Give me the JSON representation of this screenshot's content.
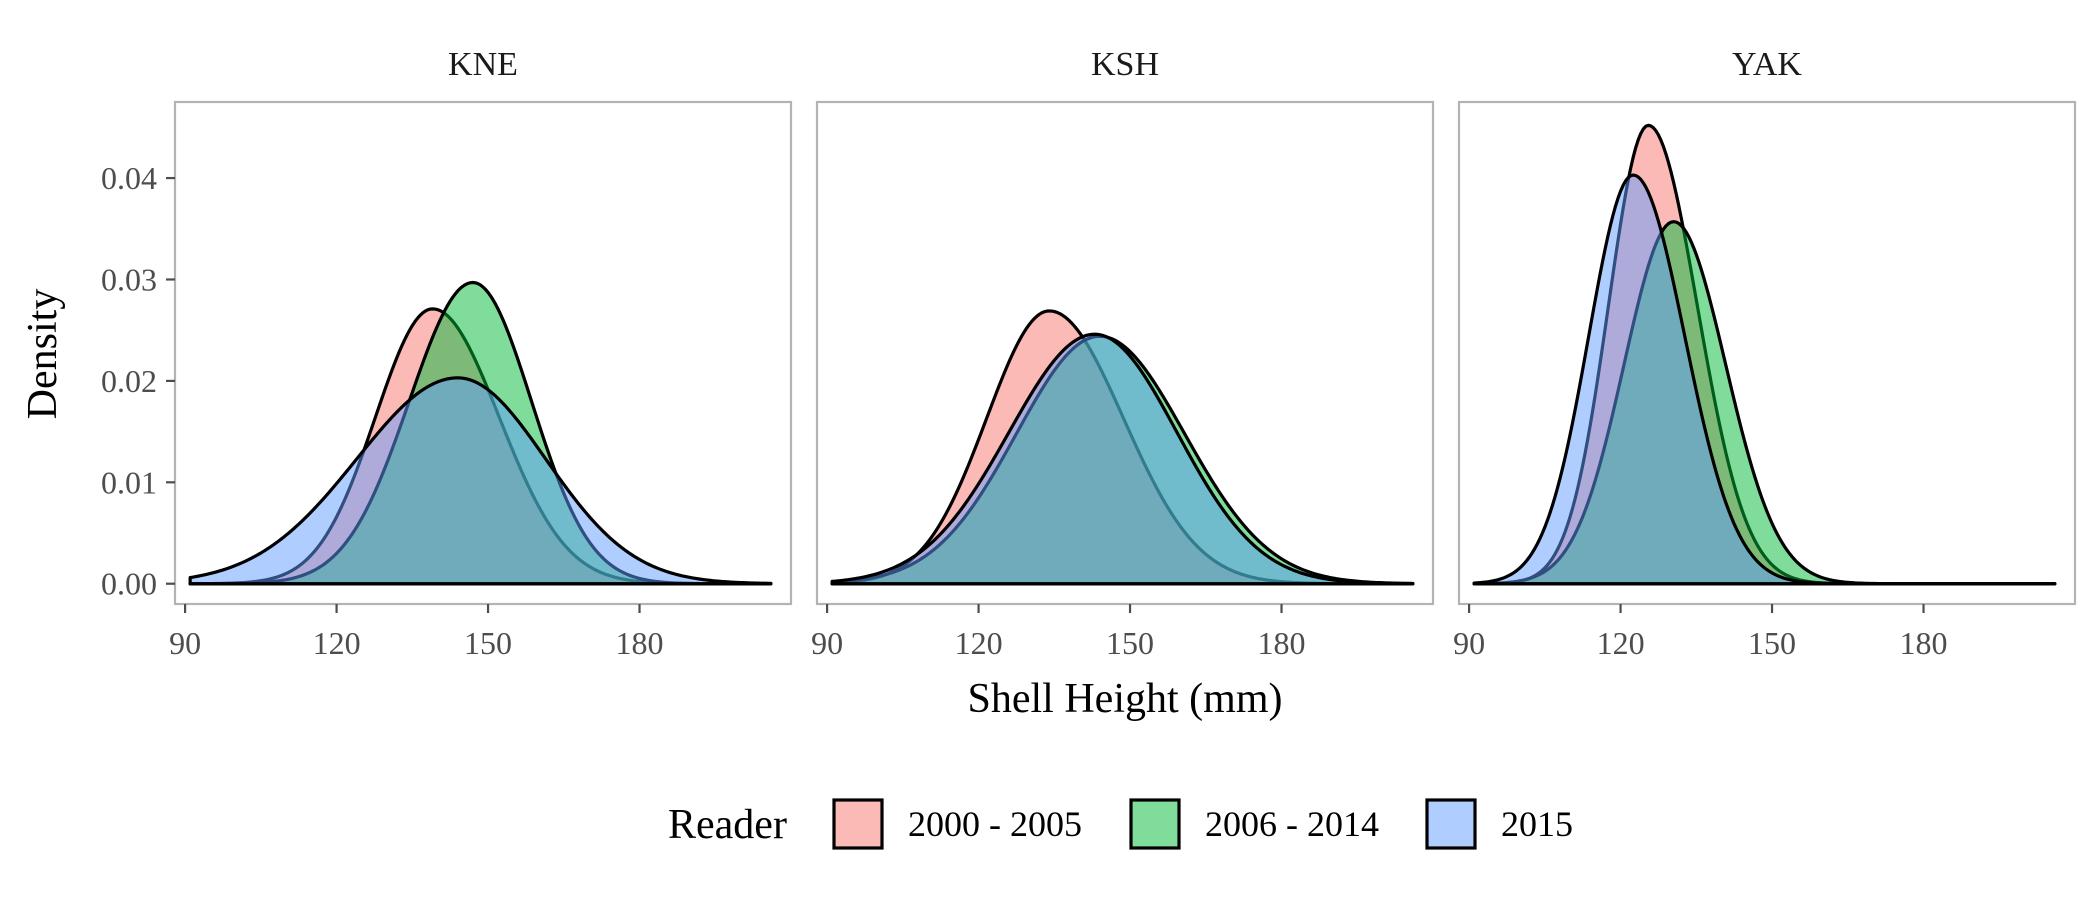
{
  "chart_data": {
    "type": "area",
    "xlabel": "Shell Height (mm)",
    "ylabel": "Density",
    "xlim": [
      88,
      210
    ],
    "ylim": [
      -0.002,
      0.0475
    ],
    "x_ticks": [
      90,
      120,
      150,
      180
    ],
    "y_ticks": [
      0.0,
      0.01,
      0.02,
      0.03,
      0.04
    ],
    "y_tick_labels": [
      "0.00",
      "0.01",
      "0.02",
      "0.03",
      "0.04"
    ],
    "x_tick_labels": [
      "90",
      "120",
      "150",
      "180"
    ],
    "grid": false,
    "legend": {
      "title": "Reader",
      "position": "bottom",
      "entries": [
        "2000 - 2005",
        "2006 - 2014",
        "2015"
      ]
    },
    "colors": {
      "2000 - 2005": "#F8766D",
      "2006 - 2014": "#00BA38",
      "2015": "#619CFF"
    },
    "x_range": [
      91,
      206
    ],
    "panels": [
      {
        "title": "KNE",
        "series": [
          {
            "name": "2000 - 2005",
            "mean": 139,
            "sd_left": 11.3,
            "sd_right": 13.2,
            "peak": 0.0271
          },
          {
            "name": "2006 - 2014",
            "mean": 147,
            "sd_left": 12.6,
            "sd_right": 11.6,
            "peak": 0.0297
          },
          {
            "name": "2015",
            "mean": 144,
            "sd_left": 20.0,
            "sd_right": 17.4,
            "peak": 0.0203
          }
        ]
      },
      {
        "title": "KSH",
        "series": [
          {
            "name": "2000 - 2005",
            "mean": 134,
            "sd_left": 12.4,
            "sd_right": 14.7,
            "peak": 0.0269
          },
          {
            "name": "2006 - 2014",
            "mean": 144,
            "sd_left": 16.5,
            "sd_right": 16.8,
            "peak": 0.0244
          },
          {
            "name": "2015",
            "mean": 143,
            "sd_left": 17.0,
            "sd_right": 16.3,
            "peak": 0.0246
          }
        ]
      },
      {
        "title": "YAK",
        "series": [
          {
            "name": "2000 - 2005",
            "mean": 125.5,
            "sd_left": 7.9,
            "sd_right": 9.7,
            "peak": 0.0452
          },
          {
            "name": "2006 - 2014",
            "mean": 130.5,
            "sd_left": 9.8,
            "sd_right": 10.3,
            "peak": 0.0357
          },
          {
            "name": "2015",
            "mean": 122.5,
            "sd_left": 8.8,
            "sd_right": 10.2,
            "peak": 0.0403
          }
        ]
      }
    ]
  }
}
